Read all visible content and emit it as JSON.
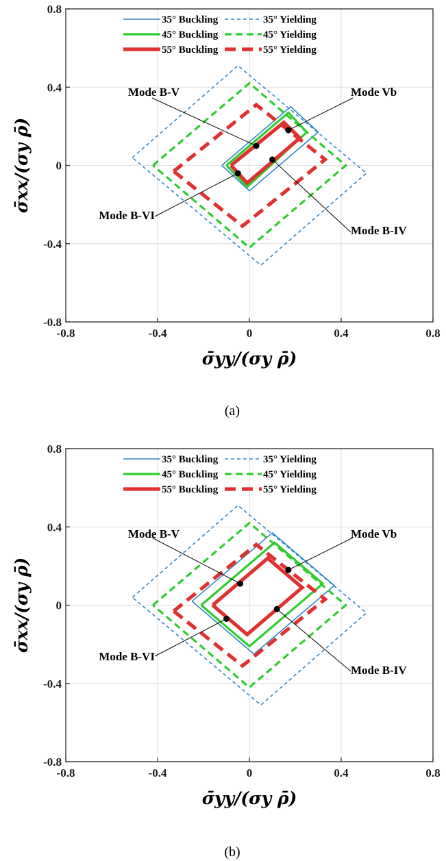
{
  "chart_data": [
    {
      "type": "line",
      "caption": "(a)",
      "xlabel": "σ̄yy/(σy ρ̄)",
      "ylabel": "σ̄xx/(σy ρ̄)",
      "xlim": [
        -0.8,
        0.8
      ],
      "ylim": [
        -0.8,
        0.8
      ],
      "xticks": [
        "-0.8",
        "-0.4",
        "0",
        "0.4",
        "0.8"
      ],
      "yticks": [
        "0.8",
        "0.4",
        "0",
        "-0.4",
        "-0.8"
      ],
      "grid": true,
      "legend_position": "top",
      "series": [
        {
          "name": "35° Buckling",
          "color": "#2e86c8",
          "style": "solid",
          "points": [
            [
              -0.12,
              0.0
            ],
            [
              0.18,
              0.3
            ],
            [
              0.3,
              0.17
            ],
            [
              0.0,
              -0.13
            ],
            [
              -0.12,
              0.0
            ]
          ]
        },
        {
          "name": "35° Yielding",
          "color": "#2e86c8",
          "style": "dashed",
          "points": [
            [
              -0.51,
              0.04
            ],
            [
              -0.05,
              0.51
            ],
            [
              0.51,
              -0.04
            ],
            [
              0.05,
              -0.51
            ],
            [
              -0.51,
              0.04
            ]
          ]
        },
        {
          "name": "45° Buckling",
          "color": "#2ecc2e",
          "style": "solid",
          "points": [
            [
              -0.1,
              0.0
            ],
            [
              0.17,
              0.27
            ],
            [
              0.25,
              0.17
            ],
            [
              -0.01,
              -0.11
            ],
            [
              -0.1,
              0.0
            ]
          ]
        },
        {
          "name": "45° Yielding",
          "color": "#2ecc2e",
          "style": "dashed",
          "points": [
            [
              -0.42,
              0.0
            ],
            [
              0.0,
              0.42
            ],
            [
              0.42,
              0.0
            ],
            [
              0.0,
              -0.42
            ],
            [
              -0.42,
              0.0
            ]
          ]
        },
        {
          "name": "55° Buckling",
          "color": "#e03030",
          "style": "solid",
          "points": [
            [
              -0.08,
              0.0
            ],
            [
              0.15,
              0.22
            ],
            [
              0.22,
              0.14
            ],
            [
              -0.01,
              -0.09
            ],
            [
              -0.08,
              0.0
            ]
          ]
        },
        {
          "name": "55° Yielding",
          "color": "#e03030",
          "style": "dashed",
          "points": [
            [
              -0.33,
              -0.03
            ],
            [
              0.03,
              0.31
            ],
            [
              0.33,
              0.03
            ],
            [
              -0.03,
              -0.31
            ],
            [
              -0.33,
              -0.03
            ]
          ]
        }
      ],
      "markers": [
        {
          "label": "Mode B-V",
          "x": 0.03,
          "y": 0.1
        },
        {
          "label": "Mode Vb",
          "x": 0.17,
          "y": 0.18
        },
        {
          "label": "Mode B-VI",
          "x": -0.05,
          "y": -0.04
        },
        {
          "label": "Mode B-IV",
          "x": 0.1,
          "y": 0.03
        }
      ]
    },
    {
      "type": "line",
      "caption": "(b)",
      "xlabel": "σ̄yy/(σy ρ̄)",
      "ylabel": "σ̄xx/(σy ρ̄)",
      "xlim": [
        -0.8,
        0.8
      ],
      "ylim": [
        -0.8,
        0.8
      ],
      "xticks": [
        "-0.8",
        "-0.4",
        "0",
        "0.4",
        "0.8"
      ],
      "yticks": [
        "0.8",
        "0.4",
        "0",
        "-0.4",
        "-0.8"
      ],
      "grid": true,
      "legend_position": "top",
      "series": [
        {
          "name": "35° Buckling",
          "color": "#2e86c8",
          "style": "solid",
          "points": [
            [
              -0.25,
              0.02
            ],
            [
              0.1,
              0.37
            ],
            [
              0.37,
              0.1
            ],
            [
              0.02,
              -0.25
            ],
            [
              -0.25,
              0.02
            ]
          ]
        },
        {
          "name": "35° Yielding",
          "color": "#2e86c8",
          "style": "dashed",
          "points": [
            [
              -0.51,
              0.04
            ],
            [
              -0.05,
              0.51
            ],
            [
              0.51,
              -0.04
            ],
            [
              0.05,
              -0.51
            ],
            [
              -0.51,
              0.04
            ]
          ]
        },
        {
          "name": "45° Buckling",
          "color": "#2ecc2e",
          "style": "solid",
          "points": [
            [
              -0.21,
              0.0
            ],
            [
              0.11,
              0.32
            ],
            [
              0.32,
              0.11
            ],
            [
              0.0,
              -0.21
            ],
            [
              -0.21,
              0.0
            ]
          ]
        },
        {
          "name": "45° Yielding",
          "color": "#2ecc2e",
          "style": "dashed",
          "points": [
            [
              -0.42,
              0.0
            ],
            [
              0.0,
              0.42
            ],
            [
              0.42,
              0.0
            ],
            [
              0.0,
              -0.42
            ],
            [
              -0.42,
              0.0
            ]
          ]
        },
        {
          "name": "55° Buckling",
          "color": "#e03030",
          "style": "solid",
          "points": [
            [
              -0.16,
              0.0
            ],
            [
              0.08,
              0.24
            ],
            [
              0.23,
              0.09
            ],
            [
              -0.01,
              -0.15
            ],
            [
              -0.16,
              0.0
            ]
          ]
        },
        {
          "name": "55° Yielding",
          "color": "#e03030",
          "style": "dashed",
          "points": [
            [
              -0.33,
              -0.03
            ],
            [
              0.03,
              0.31
            ],
            [
              0.33,
              0.03
            ],
            [
              -0.03,
              -0.31
            ],
            [
              -0.33,
              -0.03
            ]
          ]
        }
      ],
      "markers": [
        {
          "label": "Mode B-V",
          "x": -0.04,
          "y": 0.11
        },
        {
          "label": "Mode Vb",
          "x": 0.17,
          "y": 0.18
        },
        {
          "label": "Mode B-VI",
          "x": -0.1,
          "y": -0.07
        },
        {
          "label": "Mode B-IV",
          "x": 0.12,
          "y": -0.02
        }
      ]
    }
  ]
}
